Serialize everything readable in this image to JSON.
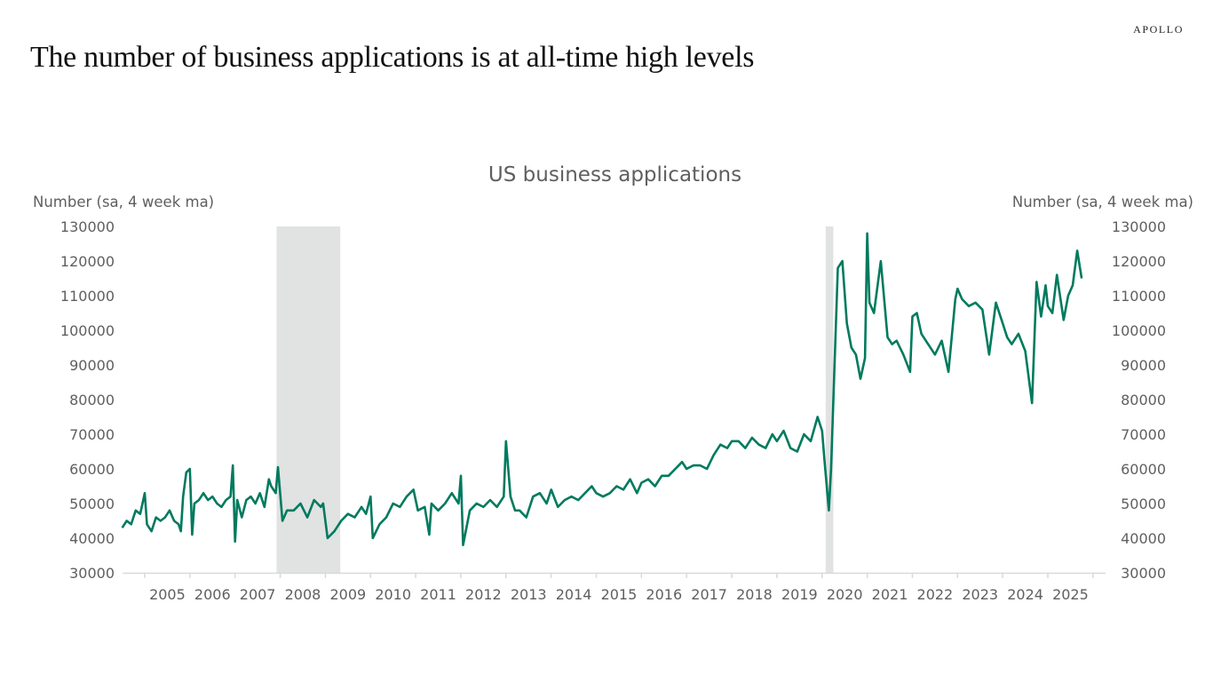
{
  "brand": "APOLLO",
  "headline": "The number of business applications is at all-time high levels",
  "colors": {
    "line": "#007A5E",
    "recession": "#E1E2E2",
    "axis": "#D9D9D9",
    "text": "#5F5F5F"
  },
  "chart_data": {
    "type": "line",
    "title": "US business applications",
    "ylabel_left": "Number (sa, 4 week ma)",
    "ylabel_right": "Number (sa, 4 week ma)",
    "xlabel": "",
    "ylim": [
      30000,
      130000
    ],
    "yticks": [
      130000,
      120000,
      110000,
      100000,
      90000,
      80000,
      70000,
      60000,
      50000,
      40000,
      30000
    ],
    "xticks": [
      "2005",
      "2006",
      "2007",
      "2008",
      "2009",
      "2010",
      "2011",
      "2012",
      "2013",
      "2014",
      "2015",
      "2016",
      "2017",
      "2018",
      "2019",
      "2020",
      "2021",
      "2022",
      "2023",
      "2024",
      "2025"
    ],
    "grid": false,
    "legend": null,
    "shaded_periods": [
      {
        "label": "recession",
        "start": 2007.92,
        "end": 2009.33
      },
      {
        "label": "recession",
        "start": 2020.08,
        "end": 2020.25
      }
    ],
    "series": [
      {
        "name": "US business applications",
        "x": [
          2004.5,
          2004.6,
          2004.7,
          2004.8,
          2004.9,
          2005.0,
          2005.05,
          2005.15,
          2005.25,
          2005.35,
          2005.45,
          2005.55,
          2005.65,
          2005.75,
          2005.8,
          2005.85,
          2005.92,
          2006.0,
          2006.05,
          2006.1,
          2006.2,
          2006.3,
          2006.4,
          2006.5,
          2006.6,
          2006.7,
          2006.8,
          2006.9,
          2006.95,
          2007.0,
          2007.05,
          2007.15,
          2007.25,
          2007.35,
          2007.45,
          2007.55,
          2007.65,
          2007.75,
          2007.8,
          2007.9,
          2007.95,
          2008.05,
          2008.15,
          2008.3,
          2008.45,
          2008.6,
          2008.75,
          2008.9,
          2008.95,
          2009.05,
          2009.2,
          2009.35,
          2009.5,
          2009.65,
          2009.8,
          2009.9,
          2010.0,
          2010.05,
          2010.2,
          2010.35,
          2010.5,
          2010.65,
          2010.8,
          2010.95,
          2011.05,
          2011.2,
          2011.3,
          2011.35,
          2011.5,
          2011.65,
          2011.8,
          2011.95,
          2012.0,
          2012.05,
          2012.2,
          2012.35,
          2012.5,
          2012.65,
          2012.8,
          2012.95,
          2013.0,
          2013.1,
          2013.2,
          2013.3,
          2013.45,
          2013.6,
          2013.75,
          2013.9,
          2014.0,
          2014.15,
          2014.3,
          2014.45,
          2014.6,
          2014.75,
          2014.9,
          2015.0,
          2015.15,
          2015.3,
          2015.45,
          2015.6,
          2015.75,
          2015.9,
          2016.0,
          2016.15,
          2016.3,
          2016.45,
          2016.6,
          2016.75,
          2016.9,
          2017.0,
          2017.15,
          2017.3,
          2017.45,
          2017.6,
          2017.75,
          2017.9,
          2018.0,
          2018.15,
          2018.3,
          2018.45,
          2018.6,
          2018.75,
          2018.9,
          2019.0,
          2019.15,
          2019.3,
          2019.45,
          2019.6,
          2019.75,
          2019.9,
          2020.0,
          2020.05,
          2020.15,
          2020.2,
          2020.25,
          2020.35,
          2020.45,
          2020.55,
          2020.65,
          2020.75,
          2020.85,
          2020.95,
          2021.0,
          2021.05,
          2021.15,
          2021.3,
          2021.45,
          2021.55,
          2021.65,
          2021.8,
          2021.95,
          2022.0,
          2022.1,
          2022.2,
          2022.35,
          2022.5,
          2022.65,
          2022.8,
          2022.95,
          2023.0,
          2023.1,
          2023.25,
          2023.4,
          2023.55,
          2023.7,
          2023.85,
          2024.0,
          2024.1,
          2024.2,
          2024.35,
          2024.5,
          2024.65,
          2024.75,
          2024.85,
          2024.95,
          2025.0,
          2025.1,
          2025.2,
          2025.35,
          2025.45,
          2025.55,
          2025.65,
          2025.75
        ],
        "values": [
          43000,
          45000,
          44000,
          48000,
          47000,
          53000,
          44000,
          42000,
          46000,
          45000,
          46000,
          48000,
          45000,
          44000,
          42000,
          52000,
          59000,
          60000,
          41000,
          50000,
          51000,
          53000,
          51000,
          52000,
          50000,
          49000,
          51000,
          52000,
          61000,
          39000,
          51000,
          46000,
          51000,
          52000,
          50000,
          53000,
          49000,
          57000,
          55000,
          53000,
          60500,
          45000,
          48000,
          48000,
          50000,
          46000,
          51000,
          49000,
          50000,
          40000,
          42000,
          45000,
          47000,
          46000,
          49000,
          47000,
          52000,
          40000,
          44000,
          46000,
          50000,
          49000,
          52000,
          54000,
          48000,
          49000,
          41000,
          50000,
          48000,
          50000,
          53000,
          50000,
          58000,
          38000,
          48000,
          50000,
          49000,
          51000,
          49000,
          52000,
          68000,
          52000,
          48000,
          48000,
          46000,
          52000,
          53000,
          50000,
          54000,
          49000,
          51000,
          52000,
          51000,
          53000,
          55000,
          53000,
          52000,
          53000,
          55000,
          54000,
          57000,
          53000,
          56000,
          57000,
          55000,
          58000,
          58000,
          60000,
          62000,
          60000,
          61000,
          61000,
          60000,
          64000,
          67000,
          66000,
          68000,
          68000,
          66000,
          69000,
          67000,
          66000,
          70000,
          68000,
          71000,
          66000,
          65000,
          70000,
          68000,
          75000,
          71000,
          63000,
          48000,
          60000,
          80000,
          118000,
          120000,
          102000,
          95000,
          93000,
          86000,
          92000,
          128000,
          108000,
          105000,
          120000,
          98000,
          96000,
          97000,
          93000,
          88000,
          104000,
          105000,
          99000,
          96000,
          93000,
          97000,
          88000,
          109000,
          112000,
          109000,
          107000,
          108000,
          106000,
          93000,
          108000,
          102000,
          98000,
          96000,
          99000,
          94000,
          79000,
          114000,
          104000,
          113000,
          107000,
          105000,
          116000,
          103000,
          110000,
          113000,
          123000,
          115000
        ]
      }
    ]
  }
}
